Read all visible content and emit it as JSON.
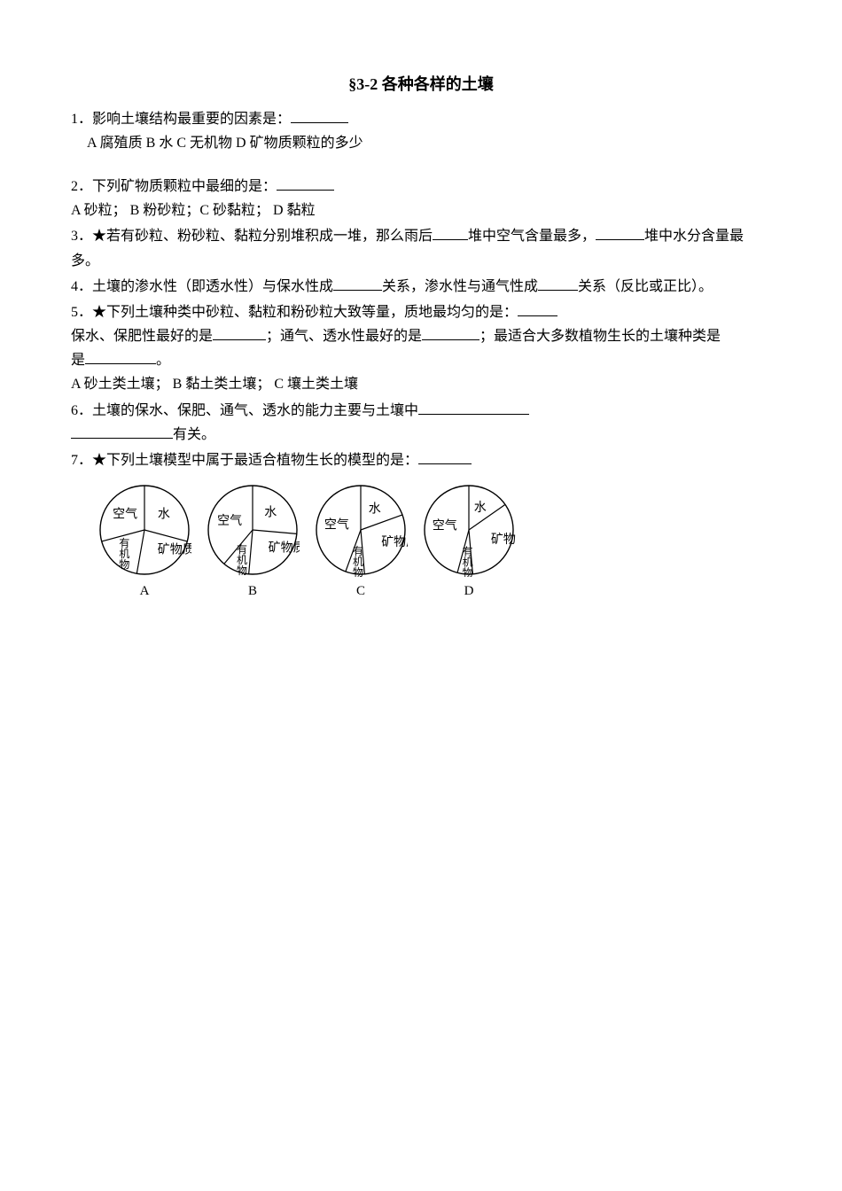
{
  "title": "§3-2 各种各样的土壤",
  "q1": {
    "text": "1．影响土壤结构最重要的因素是：",
    "options": "A 腐殖质  B 水 C 无机物 D 矿物质颗粒的多少"
  },
  "q2": {
    "text": "2．下列矿物质颗粒中最细的是：",
    "options": "A 砂粒；  B 粉砂粒；C 砂黏粒； D 黏粒"
  },
  "q3": {
    "pre": "3．★若有砂粒、粉砂粒、黏粒分别堆积成一堆，那么雨后",
    "mid": "堆中空气含量最多，",
    "post": "堆中水分含量最多。"
  },
  "q4": {
    "pre": "4．土壤的渗水性（即透水性）与保水性成",
    "mid1": "关系，渗水性与通气性成",
    "post": "关系（反比或正比）。"
  },
  "q5": {
    "line1pre": "5．★下列土壤种类中砂粒、黏粒和粉砂粒大致等量，质地最均匀的是：",
    "line2pre": "保水、保肥性最好的是",
    "line2mid": "；通气、透水性最好的是",
    "line2post": "；最适合大多数植物生长的土壤种类是",
    "line3post": "。",
    "options": "A 砂土类土壤；  B 黏土类土壤； C 壤土类土壤"
  },
  "q6": {
    "pre": "6．土壤的保水、保肥、通气、透水的能力主要与土壤中",
    "post": "有关。"
  },
  "q7": {
    "text": "7．★下列土壤模型中属于最适合植物生长的模型的是："
  },
  "pie_labels": {
    "water": "水",
    "mineral": "矿物质",
    "air": "空气",
    "organic": "有机物"
  },
  "charts": {
    "stroke": "#000000",
    "fill": "#ffffff",
    "radius": 50,
    "labels": [
      "A",
      "B",
      "C",
      "D"
    ],
    "models": [
      {
        "water_end": 105,
        "mineral_end": 190,
        "organic_end": 255,
        "air_end": 360
      },
      {
        "water_end": 95,
        "mineral_end": 185,
        "organic_end": 220,
        "air_end": 360
      },
      {
        "water_end": 70,
        "mineral_end": 175,
        "organic_end": 200,
        "air_end": 360
      },
      {
        "water_end": 55,
        "mineral_end": 175,
        "organic_end": 195,
        "air_end": 360
      }
    ]
  }
}
